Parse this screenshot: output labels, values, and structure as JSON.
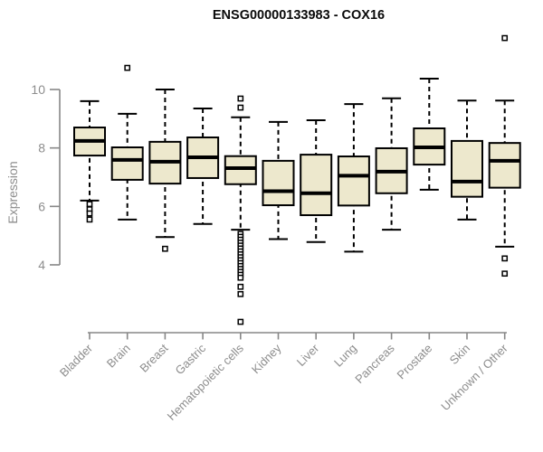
{
  "title": "ENSG00000133983 - COX16",
  "chart_data": {
    "type": "boxplot",
    "title": "ENSG00000133983 - COX16",
    "xlabel": "",
    "ylabel": "Expression",
    "y_ticks": [
      4,
      6,
      8,
      10
    ],
    "y_axis_range": [
      4,
      10
    ],
    "grid": false,
    "legend": "none",
    "box_fill": "#EDE8CD",
    "box_stroke": "#000000",
    "axis_color": "#878787",
    "label_color": "#8d8d8d",
    "categories": [
      "Bladder",
      "Brain",
      "Breast",
      "Gastric",
      "Hematopoietic cells",
      "Kidney",
      "Liver",
      "Lung",
      "Pancreas",
      "Prostate",
      "Skin",
      "Unknown / Other"
    ],
    "series": [
      {
        "category": "Bladder",
        "low": 6.2,
        "q1": 7.74,
        "median": 8.24,
        "q3": 8.7,
        "high": 9.6,
        "outliers": [
          6.08,
          5.9,
          5.76,
          5.55
        ]
      },
      {
        "category": "Brain",
        "low": 5.55,
        "q1": 6.91,
        "median": 7.59,
        "q3": 8.02,
        "high": 9.17,
        "outliers": [
          10.74
        ]
      },
      {
        "category": "Breast",
        "low": 4.95,
        "q1": 6.78,
        "median": 7.53,
        "q3": 8.21,
        "high": 10.0,
        "outliers": [
          4.55
        ]
      },
      {
        "category": "Gastric",
        "low": 5.4,
        "q1": 6.97,
        "median": 7.68,
        "q3": 8.36,
        "high": 9.35,
        "outliers": []
      },
      {
        "category": "Hematopoietic cells",
        "low": 5.2,
        "q1": 6.76,
        "median": 7.31,
        "q3": 7.72,
        "high": 9.05,
        "outliers": [
          9.69,
          9.38,
          5.06,
          4.96,
          4.86,
          4.76,
          4.66,
          4.56,
          4.46,
          4.36,
          4.26,
          4.16,
          4.06,
          3.96,
          3.86,
          3.76,
          3.66,
          3.56,
          3.25,
          3.0,
          2.05
        ]
      },
      {
        "category": "Kidney",
        "low": 4.88,
        "q1": 6.04,
        "median": 6.52,
        "q3": 7.56,
        "high": 8.89,
        "outliers": []
      },
      {
        "category": "Liver",
        "low": 4.78,
        "q1": 5.7,
        "median": 6.45,
        "q3": 7.77,
        "high": 8.95,
        "outliers": []
      },
      {
        "category": "Lung",
        "low": 4.45,
        "q1": 6.03,
        "median": 7.05,
        "q3": 7.71,
        "high": 9.5,
        "outliers": []
      },
      {
        "category": "Pancreas",
        "low": 5.2,
        "q1": 6.45,
        "median": 7.19,
        "q3": 7.99,
        "high": 9.7,
        "outliers": []
      },
      {
        "category": "Prostate",
        "low": 6.57,
        "q1": 7.43,
        "median": 8.02,
        "q3": 8.67,
        "high": 10.37,
        "outliers": []
      },
      {
        "category": "Skin",
        "low": 5.55,
        "q1": 6.33,
        "median": 6.85,
        "q3": 8.24,
        "high": 9.62,
        "outliers": []
      },
      {
        "category": "Unknown / Other",
        "low": 4.62,
        "q1": 6.64,
        "median": 7.56,
        "q3": 8.17,
        "high": 9.62,
        "outliers": [
          11.76,
          4.22,
          3.7
        ]
      }
    ]
  }
}
